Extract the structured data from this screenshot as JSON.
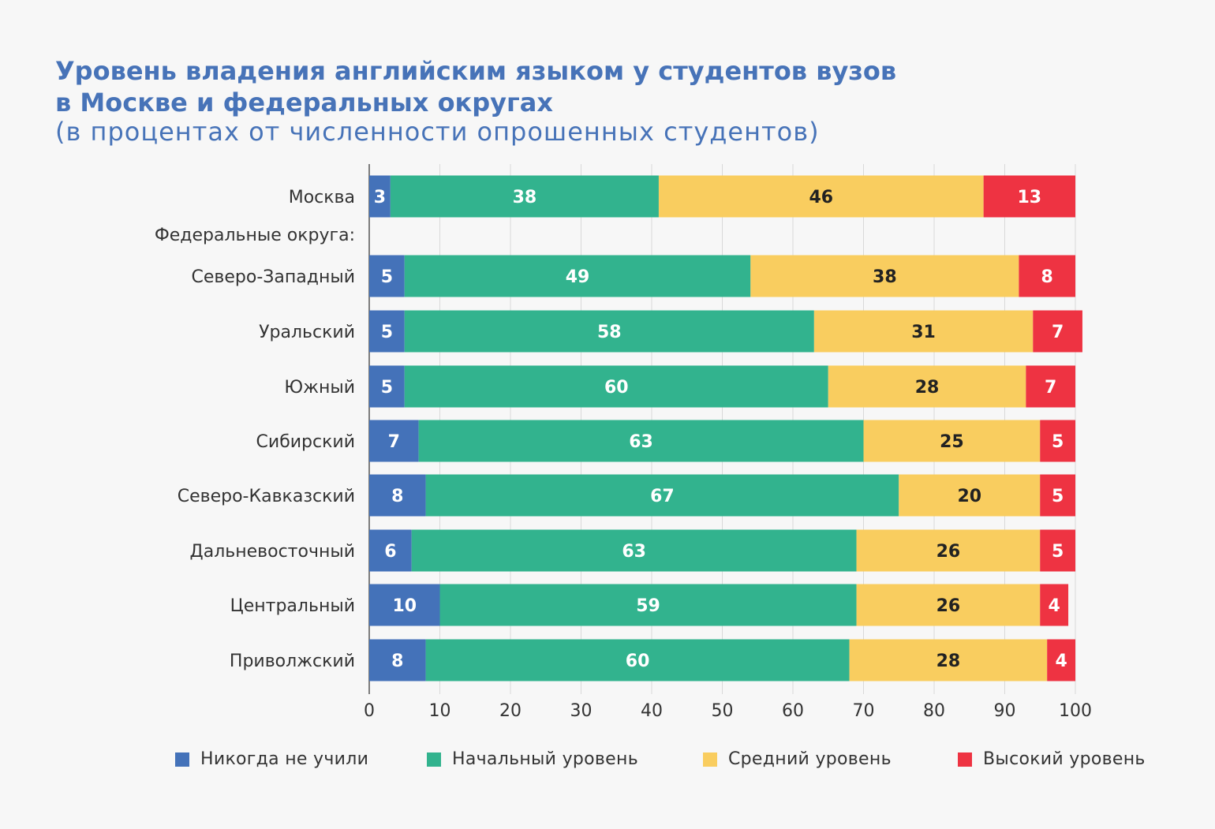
{
  "header": {
    "title_line1": "Уровень владения английским языком у студентов вузов",
    "title_line2": "в Москве и федеральных округах",
    "subtitle": "(в процентах от численности опрошенных студентов)"
  },
  "chart_data": {
    "type": "bar",
    "orientation": "horizontal",
    "stacked": true,
    "section_label": "Федеральные округа:",
    "categories": [
      "Москва",
      "Северо-Западный",
      "Уральский",
      "Южный",
      "Сибирский",
      "Северо-Кавказский",
      "Дальневосточный",
      "Центральный",
      "Приволжский"
    ],
    "series": [
      {
        "name": "Никогда не учили",
        "color": "#4472b9",
        "label_color": "#ffffff",
        "values": [
          3,
          5,
          5,
          5,
          7,
          8,
          6,
          10,
          8
        ]
      },
      {
        "name": "Начальный уровень",
        "color": "#32b38e",
        "label_color": "#ffffff",
        "values": [
          38,
          49,
          58,
          60,
          63,
          67,
          63,
          59,
          60
        ]
      },
      {
        "name": "Средний уровень",
        "color": "#f9cd5f",
        "label_color": "#222222",
        "values": [
          46,
          38,
          31,
          28,
          25,
          20,
          26,
          26,
          28
        ]
      },
      {
        "name": "Высокий уровень",
        "color": "#ee3342",
        "label_color": "#ffffff",
        "values": [
          13,
          8,
          7,
          7,
          5,
          5,
          5,
          4,
          4
        ]
      }
    ],
    "xlim": [
      0,
      100
    ],
    "xticks": [
      0,
      10,
      20,
      30,
      40,
      50,
      60,
      70,
      80,
      90,
      100
    ],
    "grid": true,
    "legend_position": "bottom"
  }
}
